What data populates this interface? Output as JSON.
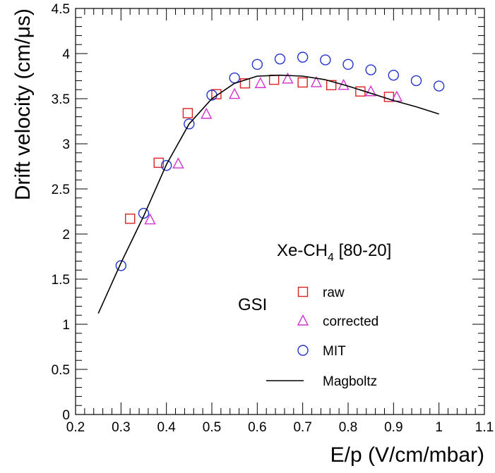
{
  "chart_data": {
    "type": "scatter",
    "xlabel": "E/p (V/cm/mbar)",
    "ylabel": "Drift velocity (cm/μs)",
    "xlim": [
      0.2,
      1.1
    ],
    "ylim": [
      0,
      4.5
    ],
    "x_ticks": [
      "0.2",
      "0.3",
      "0.4",
      "0.5",
      "0.6",
      "0.7",
      "0.8",
      "0.9",
      "1",
      "1.1"
    ],
    "y_ticks": [
      "0",
      "0.5",
      "1",
      "1.5",
      "2",
      "2.5",
      "3",
      "3.5",
      "4",
      "4.5"
    ],
    "grid": false,
    "annotation": {
      "gas_prefix": "Xe-CH",
      "gas_subscript": "4",
      "gas_suffix": " [80-20]",
      "group_label": "GSI"
    },
    "legend_position": "bottom-right",
    "series": [
      {
        "name": "raw",
        "marker": "square",
        "color": "#dd2222",
        "x": [
          0.32,
          0.383,
          0.447,
          0.51,
          0.573,
          0.637,
          0.7,
          0.763,
          0.827,
          0.89
        ],
        "y": [
          2.17,
          2.79,
          3.34,
          3.55,
          3.67,
          3.71,
          3.68,
          3.65,
          3.58,
          3.52
        ]
      },
      {
        "name": "corrected",
        "marker": "triangle",
        "color": "#d033d0",
        "x": [
          0.364,
          0.426,
          0.488,
          0.55,
          0.607,
          0.667,
          0.73,
          0.79,
          0.85,
          0.907
        ],
        "y": [
          2.16,
          2.78,
          3.33,
          3.55,
          3.67,
          3.72,
          3.68,
          3.65,
          3.58,
          3.52
        ]
      },
      {
        "name": "MIT",
        "marker": "circle",
        "color": "#2233cc",
        "x": [
          0.3,
          0.35,
          0.4,
          0.45,
          0.5,
          0.55,
          0.6,
          0.65,
          0.7,
          0.75,
          0.8,
          0.85,
          0.9,
          0.95,
          1.0
        ],
        "y": [
          1.65,
          2.23,
          2.76,
          3.22,
          3.54,
          3.73,
          3.88,
          3.94,
          3.96,
          3.93,
          3.88,
          3.82,
          3.76,
          3.7,
          3.64
        ]
      },
      {
        "name": "Magboltz",
        "marker": "line",
        "color": "#000000",
        "x": [
          0.25,
          0.3,
          0.35,
          0.4,
          0.45,
          0.5,
          0.55,
          0.6,
          0.65,
          0.7,
          0.75,
          0.8,
          0.85,
          0.9,
          0.95,
          1.0
        ],
        "y": [
          1.12,
          1.68,
          2.2,
          2.77,
          3.22,
          3.5,
          3.67,
          3.75,
          3.76,
          3.75,
          3.71,
          3.64,
          3.56,
          3.48,
          3.41,
          3.33
        ]
      }
    ]
  }
}
